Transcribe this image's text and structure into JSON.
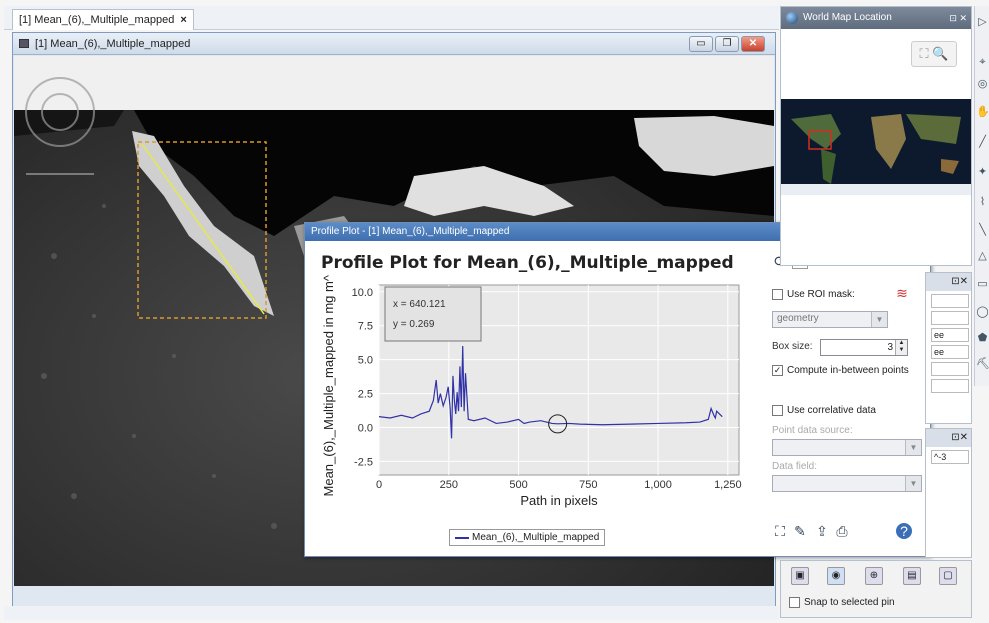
{
  "editor_tab": {
    "label": "[1] Mean_(6),_Multiple_mapped",
    "close": "×"
  },
  "frame": {
    "title": "[1] Mean_(6),_Multiple_mapped",
    "min": "▭",
    "max": "❐",
    "close": "✕"
  },
  "profile_window": {
    "title_bar": "Profile Plot - [1] Mean_(6),_Multiple_mapped",
    "title_bar_controls": "▢ ✕",
    "heading": "Profile Plot for Mean_(6),_Multiple_mapped",
    "tooltip": {
      "x": "x = 640.121",
      "y": "y = 0.269"
    },
    "legend": "Mean_(6),_Multiple_mapped",
    "controls": {
      "more": "»",
      "use_roi_mask": "Use ROI mask:",
      "roi_value": "geometry",
      "box_size_label": "Box size:",
      "box_size_value": "3",
      "compute_between": "Compute in-between points",
      "use_correlative": "Use correlative data",
      "point_source_label": "Point data source:",
      "data_field_label": "Data field:"
    }
  },
  "chart_data": {
    "type": "line",
    "title": "Profile Plot for Mean_(6),_Multiple_mapped",
    "xlabel": "Path in pixels",
    "ylabel": "Mean_(6),_Multiple_mapped in mg m^-3",
    "xlim": [
      0,
      1290
    ],
    "ylim": [
      -3.5,
      10.5
    ],
    "xticks": [
      "0",
      "250",
      "500",
      "750",
      "1,000",
      "1,250"
    ],
    "yticks": [
      "10.0",
      "7.5",
      "5.0",
      "2.5",
      "0.0",
      "-2.5"
    ],
    "grid": true,
    "legend": "bottom",
    "series": [
      {
        "name": "Mean_(6),_Multiple_mapped",
        "color": "#3131a8",
        "x": [
          0,
          40,
          80,
          120,
          150,
          180,
          195,
          205,
          212,
          220,
          230,
          240,
          248,
          255,
          260,
          265,
          270,
          275,
          280,
          285,
          290,
          295,
          300,
          305,
          310,
          320,
          340,
          380,
          420,
          460,
          500,
          520,
          540,
          580,
          620,
          640,
          680,
          720,
          800,
          900,
          1000,
          1100,
          1150,
          1180,
          1190,
          1200,
          1205,
          1210,
          1220,
          1230
        ],
        "y": [
          0.8,
          0.7,
          0.9,
          0.7,
          1.0,
          1.2,
          2.0,
          3.5,
          1.8,
          2.5,
          1.6,
          2.2,
          3.0,
          1.4,
          -0.8,
          3.8,
          2.0,
          1.0,
          2.6,
          1.2,
          4.5,
          1.5,
          6.0,
          1.2,
          4.0,
          0.6,
          0.5,
          0.7,
          0.3,
          0.4,
          0.6,
          0.3,
          0.4,
          0.5,
          0.3,
          0.27,
          0.3,
          0.25,
          0.2,
          0.25,
          0.3,
          0.35,
          0.4,
          0.6,
          1.4,
          0.9,
          0.7,
          1.2,
          1.0,
          0.8
        ]
      }
    ],
    "marker": {
      "x": 640.121,
      "y": 0.269
    }
  },
  "world_map": {
    "title": "World Map Location",
    "controls": "⊡ ✕",
    "zoom": "⛶ 🔍"
  },
  "right_panels": {
    "p1_head": "⊡✕",
    "p1_fields": [
      "",
      "",
      "ee",
      "ee",
      "",
      ""
    ],
    "p2_head": "⊡✕",
    "p2_fields": [
      "^-3"
    ]
  },
  "pin_manager": {
    "snap": "Snap to selected pin"
  },
  "colors": {
    "line": "#3131a8",
    "titlebar": "#4a7bbd",
    "map_bg": "#0d1a2e"
  }
}
